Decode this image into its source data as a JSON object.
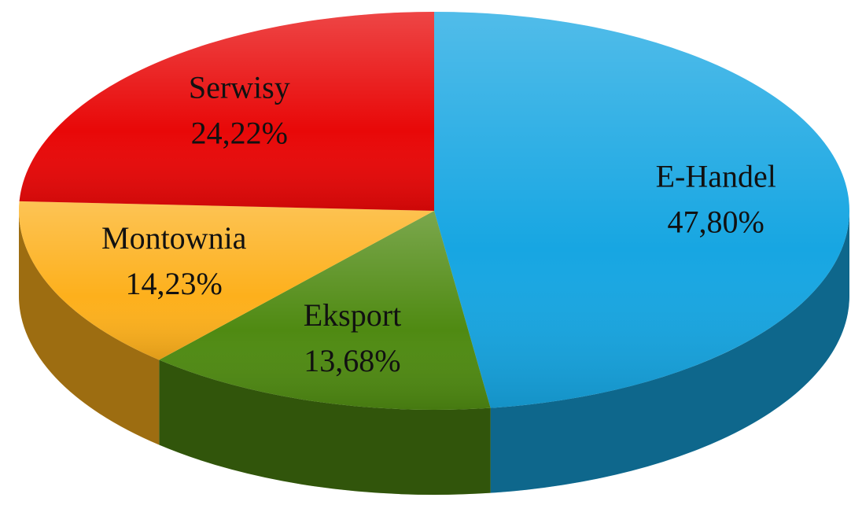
{
  "chart_data": {
    "type": "pie",
    "categories": [
      "E-Handel",
      "Eksport",
      "Montownia",
      "Serwisy"
    ],
    "values": [
      47.8,
      13.68,
      14.23,
      24.22
    ],
    "value_labels": [
      "47,80%",
      "13,68%",
      "14,23%",
      "24,22%"
    ],
    "colors": [
      "#17a6e2",
      "#4f8a12",
      "#fdb01c",
      "#e80808"
    ]
  }
}
